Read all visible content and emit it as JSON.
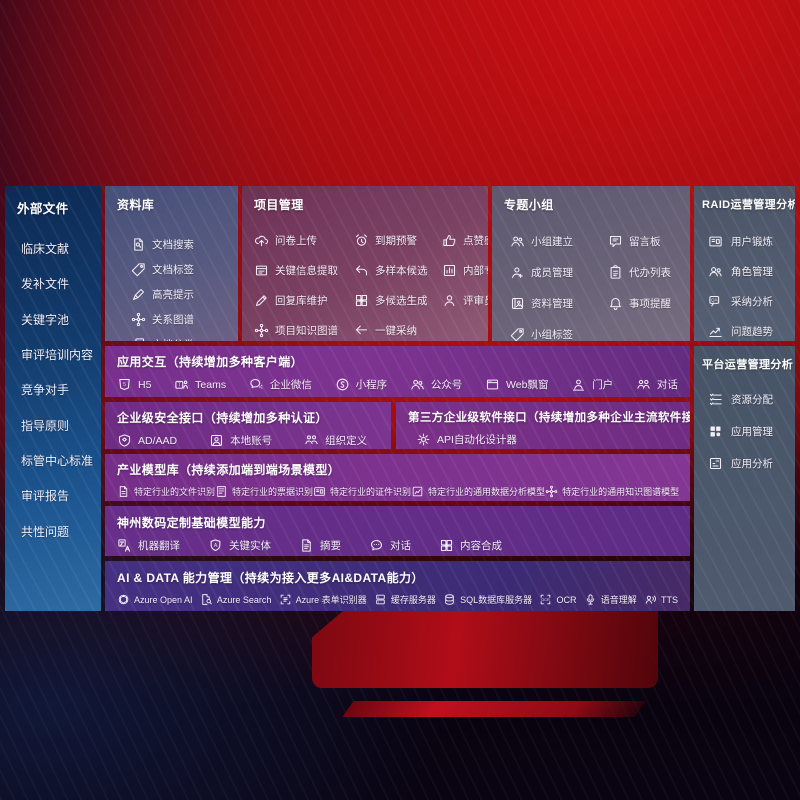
{
  "colors": {
    "background_red": "#b30d10",
    "accent_purple": "#7b3390",
    "sidebar_blue": "#1c5590",
    "slate_panel": "#566074",
    "indigo_row": "#3c2b74"
  },
  "sidebar": {
    "title": "外部文件",
    "items": [
      "临床文献",
      "发补文件",
      "关键字池",
      "审评培训内容",
      "竞争对手",
      "指导原则",
      "标管中心标准",
      "审评报告",
      "共性问题"
    ]
  },
  "library": {
    "title": "资料库",
    "items": [
      {
        "icon": "doc-search",
        "label": "文档搜索"
      },
      {
        "icon": "tag",
        "label": "文档标签"
      },
      {
        "icon": "highlight-pen",
        "label": "高亮提示"
      },
      {
        "icon": "relation-graph",
        "label": "关系图谱"
      },
      {
        "icon": "doc-category",
        "label": "文档分类"
      }
    ]
  },
  "project": {
    "title": "项目管理",
    "items": [
      {
        "icon": "cloud-upload",
        "label": "问卷上传"
      },
      {
        "icon": "alarm",
        "label": "到期预警"
      },
      {
        "icon": "thumbs-up",
        "label": "点赞感谢"
      },
      {
        "icon": "doc-extract",
        "label": "关键信息提取"
      },
      {
        "icon": "reply-arrow",
        "label": "多样本候选"
      },
      {
        "icon": "ranking-chart",
        "label": "内部专家排名"
      },
      {
        "icon": "pencil",
        "label": "回复库维护"
      },
      {
        "icon": "grid-generate",
        "label": "多候选生成"
      },
      {
        "icon": "person",
        "label": "评审员画像"
      },
      {
        "icon": "relation-graph",
        "label": "项目知识图谱"
      },
      {
        "icon": "adopt-arrow",
        "label": "一键采纳"
      }
    ]
  },
  "topic": {
    "title": "专题小组",
    "items": [
      {
        "icon": "group",
        "label": "小组建立"
      },
      {
        "icon": "bbs",
        "label": "留言板"
      },
      {
        "icon": "member",
        "label": "成员管理"
      },
      {
        "icon": "todo-list",
        "label": "代办列表"
      },
      {
        "icon": "data-album",
        "label": "资料管理"
      },
      {
        "icon": "bell",
        "label": "事项提醒"
      },
      {
        "icon": "tag",
        "label": "小组标签"
      }
    ]
  },
  "raid": {
    "title": "RAID运营管理分析",
    "items": [
      {
        "icon": "id-card",
        "label": "用户锻炼"
      },
      {
        "icon": "roles",
        "label": "角色管理"
      },
      {
        "icon": "qa-chat",
        "label": "采纳分析"
      },
      {
        "icon": "trend-chart",
        "label": "问题趋势"
      }
    ]
  },
  "platform": {
    "title": "平台运营管理分析",
    "items": [
      {
        "icon": "resource-list",
        "label": "资源分配"
      },
      {
        "icon": "app-grid",
        "label": "应用管理"
      },
      {
        "icon": "app-report",
        "label": "应用分析"
      }
    ]
  },
  "rows": {
    "app": {
      "title": "应用交互（持续增加多种客户端）",
      "items": [
        {
          "icon": "h5",
          "label": "H5"
        },
        {
          "icon": "teams",
          "label": "Teams"
        },
        {
          "icon": "wechat-work",
          "label": "企业微信"
        },
        {
          "icon": "miniprogram",
          "label": "小程序"
        },
        {
          "icon": "official-account",
          "label": "公众号"
        },
        {
          "icon": "web-window",
          "label": "Web飘窗"
        },
        {
          "icon": "portal",
          "label": "门户"
        },
        {
          "icon": "dialog",
          "label": "对话"
        }
      ]
    },
    "security": {
      "title": "企业级安全接口（持续增加多种认证）",
      "items": [
        {
          "icon": "shield",
          "label": "AD/AAD"
        },
        {
          "icon": "local-account",
          "label": "本地账号"
        },
        {
          "icon": "org-people",
          "label": "组织定义"
        }
      ]
    },
    "third": {
      "title": "第三方企业级软件接口（持续增加多种企业主流软件接口）",
      "items": [
        {
          "icon": "api-gear",
          "label": "API自动化设计器"
        }
      ]
    },
    "industry": {
      "title": "产业模型库（持续添加端到端场景模型）",
      "items": [
        {
          "icon": "file-recognition",
          "label": "特定行业的文件识别"
        },
        {
          "icon": "bill-recognition",
          "label": "特定行业的票据识别"
        },
        {
          "icon": "id-card",
          "label": "特定行业的证件识别"
        },
        {
          "icon": "data-analysis-model",
          "label": "特定行业的通用数据分析模型"
        },
        {
          "icon": "relation-graph",
          "label": "特定行业的通用知识图谱模型"
        }
      ]
    },
    "base": {
      "title": "神州数码定制基础模型能力",
      "items": [
        {
          "icon": "translate",
          "label": "机器翻译"
        },
        {
          "icon": "entity-shield",
          "label": "关键实体"
        },
        {
          "icon": "summary-doc",
          "label": "摘要"
        },
        {
          "icon": "chat-bubble",
          "label": "对话"
        },
        {
          "icon": "grid-generate",
          "label": "内容合成"
        }
      ]
    },
    "aidata": {
      "title": "AI & DATA 能力管理（持续为接入更多AI&DATA能力）",
      "items": [
        {
          "icon": "openai",
          "label": "Azure Open AI"
        },
        {
          "icon": "azure-search",
          "label": "Azure Search"
        },
        {
          "icon": "form-recognizer",
          "label": "Azure 表单识别器"
        },
        {
          "icon": "cache-server",
          "label": "缓存服务器"
        },
        {
          "icon": "sql-database",
          "label": "SQL数据库服务器"
        },
        {
          "icon": "ocr",
          "label": "OCR"
        },
        {
          "icon": "speech",
          "label": "语音理解"
        },
        {
          "icon": "tts",
          "label": "TTS"
        }
      ]
    }
  }
}
